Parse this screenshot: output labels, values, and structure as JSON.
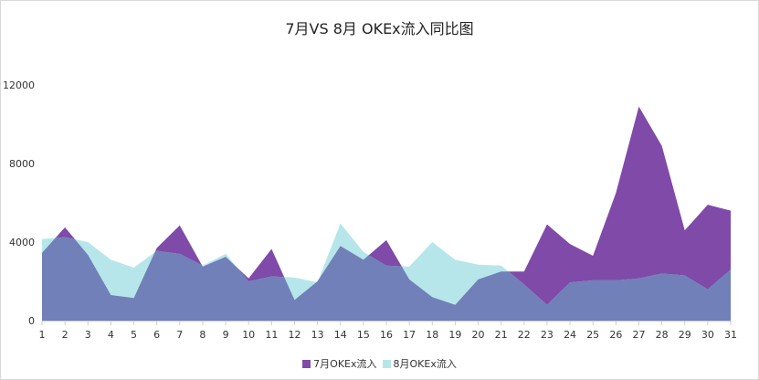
{
  "chart_data": {
    "type": "area",
    "title": "7月VS 8月 OKEx流入同比图",
    "xlabel": "",
    "ylabel": "",
    "ylim": [
      0,
      12000
    ],
    "yticks": [
      0,
      4000,
      8000,
      12000
    ],
    "grid": false,
    "legend_position": "bottom",
    "categories": [
      1,
      2,
      3,
      4,
      5,
      6,
      7,
      8,
      9,
      10,
      11,
      12,
      13,
      14,
      15,
      16,
      17,
      18,
      19,
      20,
      21,
      22,
      23,
      24,
      25,
      26,
      27,
      28,
      29,
      30,
      31
    ],
    "series": [
      {
        "name": "7月OKEx流入",
        "color": "#7f4aa8",
        "values": [
          3450,
          4750,
          3350,
          1300,
          1150,
          3700,
          4850,
          2750,
          3250,
          2150,
          3650,
          1050,
          2000,
          3800,
          3100,
          4100,
          2100,
          1200,
          800,
          2100,
          2500,
          2500,
          4900,
          3900,
          3300,
          6500,
          10900,
          8900,
          4600,
          5900,
          5600
        ]
      },
      {
        "name": "8月OKEx流入",
        "color": "#b6e6ea",
        "values": [
          4150,
          4250,
          4000,
          3100,
          2700,
          3550,
          3400,
          2800,
          3400,
          2000,
          2250,
          2200,
          1950,
          4950,
          3500,
          2800,
          2750,
          4000,
          3100,
          2850,
          2800,
          1850,
          800,
          1950,
          2050,
          2050,
          2150,
          2400,
          2300,
          1600,
          2600
        ]
      }
    ]
  },
  "colors": {
    "overlap": "#7180b8"
  }
}
